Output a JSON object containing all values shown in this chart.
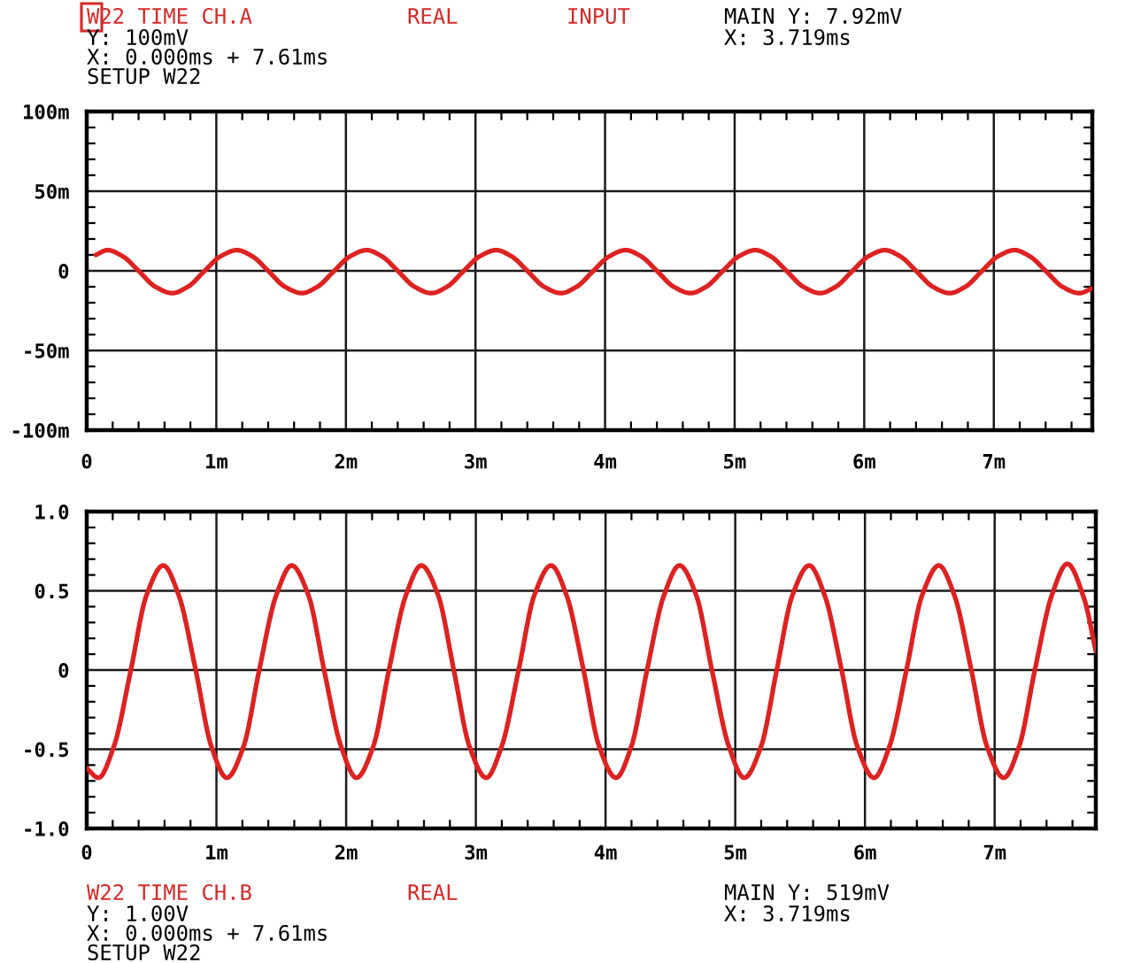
{
  "chart_data": [
    {
      "type": "line",
      "title": "W22 TIME CH.A",
      "annotations": [
        "REAL",
        "INPUT",
        "MAIN Y: 7.92mV",
        "Y: 100mV",
        "X: 0.000ms + 7.61ms",
        "SETUP W22",
        "X: 3.719ms"
      ],
      "x": [
        0.07,
        0.16,
        0.28,
        0.4,
        0.53,
        0.66,
        0.78,
        0.91,
        1.03,
        1.16,
        1.28,
        1.4,
        1.53,
        1.66,
        1.78,
        1.91,
        2.03,
        2.16,
        2.28,
        2.4,
        2.53,
        2.66,
        2.78,
        2.91,
        3.03,
        3.16,
        3.28,
        3.4,
        3.53,
        3.66,
        3.78,
        3.91,
        4.03,
        4.16,
        4.28,
        4.4,
        4.53,
        4.66,
        4.78,
        4.91,
        5.03,
        5.16,
        5.28,
        5.4,
        5.53,
        5.66,
        5.78,
        5.91,
        6.03,
        6.16,
        6.28,
        6.4,
        6.53,
        6.66,
        6.78,
        6.91,
        7.03,
        7.16,
        7.28,
        7.4,
        7.53,
        7.66,
        7.76
      ],
      "values": [
        10,
        13,
        9,
        0,
        -10,
        -14,
        -10,
        0,
        9,
        13,
        9,
        0,
        -10,
        -14,
        -10,
        0,
        9,
        13,
        9,
        0,
        -10,
        -14,
        -10,
        0,
        9,
        13,
        9,
        0,
        -10,
        -14,
        -10,
        0,
        9,
        13,
        9,
        0,
        -10,
        -14,
        -10,
        0,
        9,
        13,
        9,
        0,
        -10,
        -14,
        -10,
        0,
        9,
        13,
        9,
        0,
        -10,
        -14,
        -10,
        0,
        9,
        13,
        9,
        0,
        -10,
        -14,
        -11
      ],
      "color": "#dd2222",
      "xlim": [
        0,
        7.76
      ],
      "ylim": [
        -100,
        100
      ],
      "xticks": [
        0,
        {
          "value": 1,
          "label": "1m"
        },
        {
          "value": 2,
          "label": "2m"
        },
        {
          "value": 3,
          "label": "3m"
        },
        {
          "value": 4,
          "label": "4m"
        },
        {
          "value": 5,
          "label": "5m"
        },
        {
          "value": 6,
          "label": "6m"
        },
        {
          "value": 7,
          "label": "7m"
        },
        {
          "value": 0.2,
          "label": null
        },
        {
          "value": 0.4,
          "label": null
        },
        {
          "value": 0.6,
          "label": null
        },
        {
          "value": 0.8,
          "label": null
        },
        {
          "value": 1.2,
          "label": null
        },
        {
          "value": 1.4,
          "label": null
        },
        {
          "value": 1.6,
          "label": null
        },
        {
          "value": 1.8,
          "label": null
        },
        {
          "value": 2.2,
          "label": null
        },
        {
          "value": 2.4,
          "label": null
        },
        {
          "value": 2.6,
          "label": null
        },
        {
          "value": 2.8,
          "label": null
        },
        {
          "value": 3.2,
          "label": null
        },
        {
          "value": 3.4,
          "label": null
        },
        {
          "value": 3.6,
          "label": null
        },
        {
          "value": 3.8,
          "label": null
        },
        {
          "value": 4.2,
          "label": null
        },
        {
          "value": 4.4,
          "label": null
        },
        {
          "value": 4.6,
          "label": null
        },
        {
          "value": 4.8,
          "label": null
        },
        {
          "value": 5.2,
          "label": null
        },
        {
          "value": 5.4,
          "label": null
        },
        {
          "value": 5.6,
          "label": null
        },
        {
          "value": 5.8,
          "label": null
        },
        {
          "value": 6.2,
          "label": null
        },
        {
          "value": 6.4,
          "label": null
        },
        {
          "value": 6.6,
          "label": null
        },
        {
          "value": 6.8,
          "label": null
        },
        {
          "value": 7.2,
          "label": null
        },
        {
          "value": 7.4,
          "label": null
        },
        {
          "value": 7.6,
          "label": null
        }
      ],
      "yticks": [
        {
          "value": -100,
          "label": "-100m"
        },
        {
          "value": -50,
          "label": "-50m"
        },
        0,
        {
          "value": 50,
          "label": "50m"
        },
        {
          "value": 100,
          "label": "100m"
        },
        {
          "value": -90,
          "label": null
        },
        {
          "value": -80,
          "label": null
        },
        {
          "value": -70,
          "label": null
        },
        {
          "value": -60,
          "label": null
        },
        {
          "value": -40,
          "label": null
        },
        {
          "value": -30,
          "label": null
        },
        {
          "value": -20,
          "label": null
        },
        {
          "value": -10,
          "label": null
        },
        {
          "value": 10,
          "label": null
        },
        {
          "value": 20,
          "label": null
        },
        {
          "value": 30,
          "label": null
        },
        {
          "value": 40,
          "label": null
        },
        {
          "value": 60,
          "label": null
        },
        {
          "value": 70,
          "label": null
        },
        {
          "value": 80,
          "label": null
        },
        {
          "value": 90,
          "label": null
        }
      ],
      "grid": true
    },
    {
      "type": "line",
      "title": "W22 TIME CH.B",
      "annotations": [
        "REAL",
        "MAIN Y: 519mV",
        "Y: 1.00V",
        "X: 0.000ms + 7.61ms",
        "SETUP W22",
        "X: 3.719ms"
      ],
      "x": [
        0,
        0.09,
        0.21,
        0.34,
        0.46,
        0.59,
        0.71,
        0.84,
        0.96,
        1.08,
        1.21,
        1.33,
        1.46,
        1.58,
        1.71,
        1.83,
        1.96,
        2.08,
        2.21,
        2.33,
        2.46,
        2.58,
        2.71,
        2.83,
        2.95,
        3.08,
        3.2,
        3.33,
        3.45,
        3.58,
        3.7,
        3.83,
        3.95,
        4.08,
        4.2,
        4.32,
        4.45,
        4.57,
        4.7,
        4.82,
        4.95,
        5.07,
        5.2,
        5.32,
        5.44,
        5.57,
        5.69,
        5.82,
        5.94,
        6.07,
        6.19,
        6.32,
        6.44,
        6.57,
        6.69,
        6.82,
        6.94,
        7.07,
        7.19,
        7.31,
        7.44,
        7.56,
        7.69,
        7.78
      ],
      "values": [
        -0.62,
        -0.68,
        -0.48,
        0,
        0.47,
        0.66,
        0.47,
        0,
        -0.48,
        -0.68,
        -0.48,
        0,
        0.47,
        0.66,
        0.47,
        0,
        -0.48,
        -0.68,
        -0.48,
        0,
        0.47,
        0.66,
        0.47,
        0,
        -0.48,
        -0.68,
        -0.48,
        0,
        0.47,
        0.66,
        0.47,
        0,
        -0.48,
        -0.68,
        -0.48,
        0,
        0.47,
        0.66,
        0.47,
        0,
        -0.48,
        -0.68,
        -0.48,
        0,
        0.47,
        0.66,
        0.47,
        0,
        -0.48,
        -0.68,
        -0.48,
        0,
        0.47,
        0.66,
        0.47,
        0,
        -0.48,
        -0.68,
        -0.48,
        0,
        0.47,
        0.67,
        0.45,
        0.12
      ],
      "color": "#dd2222",
      "xlim": [
        0,
        7.78
      ],
      "ylim": [
        -1,
        1
      ],
      "xticks": [
        0,
        {
          "value": 1,
          "label": "1m"
        },
        {
          "value": 2,
          "label": "2m"
        },
        {
          "value": 3,
          "label": "3m"
        },
        {
          "value": 4,
          "label": "4m"
        },
        {
          "value": 5,
          "label": "5m"
        },
        {
          "value": 6,
          "label": "6m"
        },
        {
          "value": 7,
          "label": "7m"
        },
        {
          "value": 0.2,
          "label": null
        },
        {
          "value": 0.4,
          "label": null
        },
        {
          "value": 0.6,
          "label": null
        },
        {
          "value": 0.8,
          "label": null
        },
        {
          "value": 1.2,
          "label": null
        },
        {
          "value": 1.4,
          "label": null
        },
        {
          "value": 1.6,
          "label": null
        },
        {
          "value": 1.8,
          "label": null
        },
        {
          "value": 2.2,
          "label": null
        },
        {
          "value": 2.4,
          "label": null
        },
        {
          "value": 2.6,
          "label": null
        },
        {
          "value": 2.8,
          "label": null
        },
        {
          "value": 3.2,
          "label": null
        },
        {
          "value": 3.4,
          "label": null
        },
        {
          "value": 3.6,
          "label": null
        },
        {
          "value": 3.8,
          "label": null
        },
        {
          "value": 4.2,
          "label": null
        },
        {
          "value": 4.4,
          "label": null
        },
        {
          "value": 4.6,
          "label": null
        },
        {
          "value": 4.8,
          "label": null
        },
        {
          "value": 5.2,
          "label": null
        },
        {
          "value": 5.4,
          "label": null
        },
        {
          "value": 5.6,
          "label": null
        },
        {
          "value": 5.8,
          "label": null
        },
        {
          "value": 6.2,
          "label": null
        },
        {
          "value": 6.4,
          "label": null
        },
        {
          "value": 6.6,
          "label": null
        },
        {
          "value": 6.8,
          "label": null
        },
        {
          "value": 7.2,
          "label": null
        },
        {
          "value": 7.4,
          "label": null
        },
        {
          "value": 7.6,
          "label": null
        }
      ],
      "yticks": [
        {
          "value": -1,
          "label": "-1.0"
        },
        -0.5,
        0,
        0.5,
        {
          "value": 1,
          "label": "1.0"
        },
        {
          "value": -0.9,
          "label": null
        },
        {
          "value": -0.8,
          "label": null
        },
        {
          "value": -0.7,
          "label": null
        },
        {
          "value": -0.6,
          "label": null
        },
        {
          "value": -0.4,
          "label": null
        },
        {
          "value": -0.3,
          "label": null
        },
        {
          "value": -0.2,
          "label": null
        },
        {
          "value": -0.1,
          "label": null
        },
        {
          "value": 0.1,
          "label": null
        },
        {
          "value": 0.2,
          "label": null
        },
        {
          "value": 0.3,
          "label": null
        },
        {
          "value": 0.4,
          "label": null
        },
        {
          "value": 0.6,
          "label": null
        },
        {
          "value": 0.7,
          "label": null
        },
        {
          "value": 0.8,
          "label": null
        },
        {
          "value": 0.9,
          "label": null
        }
      ],
      "grid": true
    }
  ]
}
